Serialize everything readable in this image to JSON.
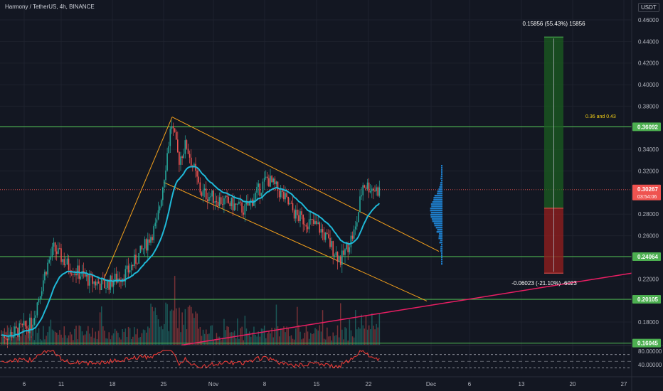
{
  "header": {
    "symbol_line": "Harmony / TetherUS, 4h, BINANCE",
    "currency": "USDT"
  },
  "colors": {
    "background": "#131722",
    "grid": "#1e222d",
    "up": "#26a69a",
    "down": "#ef5350",
    "support_line": "#4caf50",
    "channel": "#f7a21b",
    "ema": "#1fb9d8",
    "trendline": "#e91e63",
    "rsi": "#e53935",
    "volume_profile": "#2196f3"
  },
  "chart_data": {
    "type": "candlestick",
    "title": "Harmony / TetherUS, 4h, BINANCE",
    "price_axis": {
      "ticks": [
        "0.46000",
        "0.44000",
        "0.42000",
        "0.40000",
        "0.38000",
        "0.34000",
        "0.32000",
        "0.28000",
        "0.26000",
        "0.22000",
        "0.18000"
      ],
      "range": [
        0.155,
        0.468
      ]
    },
    "time_axis": {
      "ticks": [
        "6",
        "11",
        "18",
        "25",
        "Nov",
        "8",
        "15",
        "22",
        "Dec",
        "6",
        "13",
        "20",
        "27"
      ]
    },
    "horizontal_levels": [
      {
        "label": "0.36092",
        "value": 0.36092
      },
      {
        "label": "0.24064",
        "value": 0.24064
      },
      {
        "label": "0.20105",
        "value": 0.20105
      },
      {
        "label": "0.16045",
        "value": 0.16045
      }
    ],
    "current_price": {
      "label": "0.30267",
      "countdown": "03:54:06",
      "value": 0.30267
    },
    "projection": {
      "target_label": "0.15856 (55.43%) 15856",
      "stop_label": "-0.06023 (-21.10%) -6023",
      "entry": 0.2855,
      "target": 0.4441,
      "stop": 0.2253
    },
    "annotation": "0.36 and 0.43",
    "series_close_approx": [
      {
        "date": "Oct 4",
        "close": 0.168
      },
      {
        "date": "Oct 7",
        "close": 0.178
      },
      {
        "date": "Oct 9",
        "close": 0.23
      },
      {
        "date": "Oct 10",
        "close": 0.248
      },
      {
        "date": "Oct 12",
        "close": 0.232
      },
      {
        "date": "Oct 15",
        "close": 0.218
      },
      {
        "date": "Oct 17",
        "close": 0.214
      },
      {
        "date": "Oct 20",
        "close": 0.226
      },
      {
        "date": "Oct 22",
        "close": 0.246
      },
      {
        "date": "Oct 24",
        "close": 0.27
      },
      {
        "date": "Oct 25",
        "close": 0.315
      },
      {
        "date": "Oct 26",
        "close": 0.365
      },
      {
        "date": "Oct 27",
        "close": 0.33
      },
      {
        "date": "Oct 28",
        "close": 0.345
      },
      {
        "date": "Oct 30",
        "close": 0.3
      },
      {
        "date": "Nov 2",
        "close": 0.292
      },
      {
        "date": "Nov 5",
        "close": 0.284
      },
      {
        "date": "Nov 8",
        "close": 0.313
      },
      {
        "date": "Nov 10",
        "close": 0.298
      },
      {
        "date": "Nov 12",
        "close": 0.278
      },
      {
        "date": "Nov 15",
        "close": 0.268
      },
      {
        "date": "Nov 18",
        "close": 0.237
      },
      {
        "date": "Nov 20",
        "close": 0.266
      },
      {
        "date": "Nov 21",
        "close": 0.308
      },
      {
        "date": "Nov 23",
        "close": 0.302
      }
    ],
    "rsi": {
      "ticks": [
        "80.00000",
        "40.00000"
      ],
      "range": [
        25,
        95
      ]
    }
  }
}
